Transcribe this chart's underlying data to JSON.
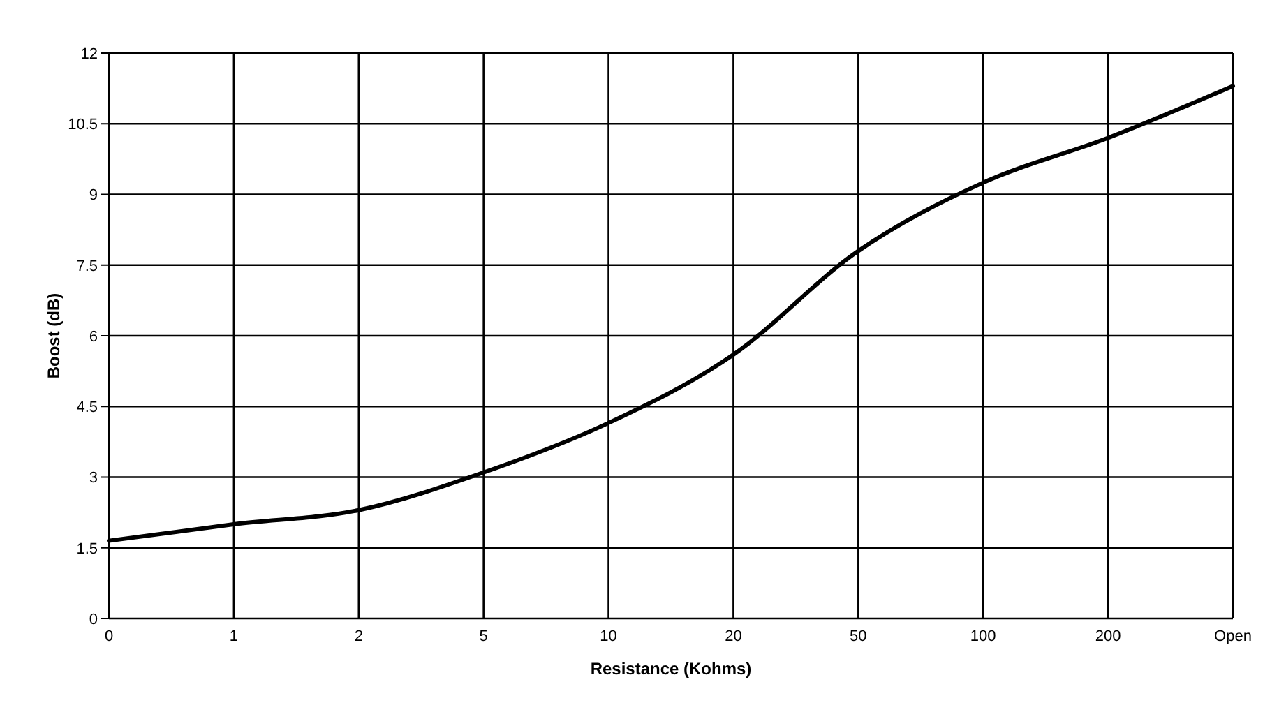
{
  "chart_data": {
    "type": "line",
    "xlabel": "Resistance (Kohms)",
    "ylabel": "Boost (dB)",
    "categories": [
      "0",
      "1",
      "2",
      "5",
      "10",
      "20",
      "50",
      "100",
      "200",
      "Open"
    ],
    "series": [
      {
        "color": "#000000",
        "values": [
          1.65,
          2.0,
          2.3,
          3.1,
          4.15,
          5.6,
          7.8,
          9.25,
          10.2,
          11.3
        ]
      }
    ],
    "ylim": [
      0,
      12
    ],
    "yticks": [
      0,
      1.5,
      3,
      4.5,
      6,
      7.5,
      9,
      10.5,
      12
    ],
    "grid": true,
    "legend": false,
    "marker": "none",
    "line_style": "solid"
  }
}
